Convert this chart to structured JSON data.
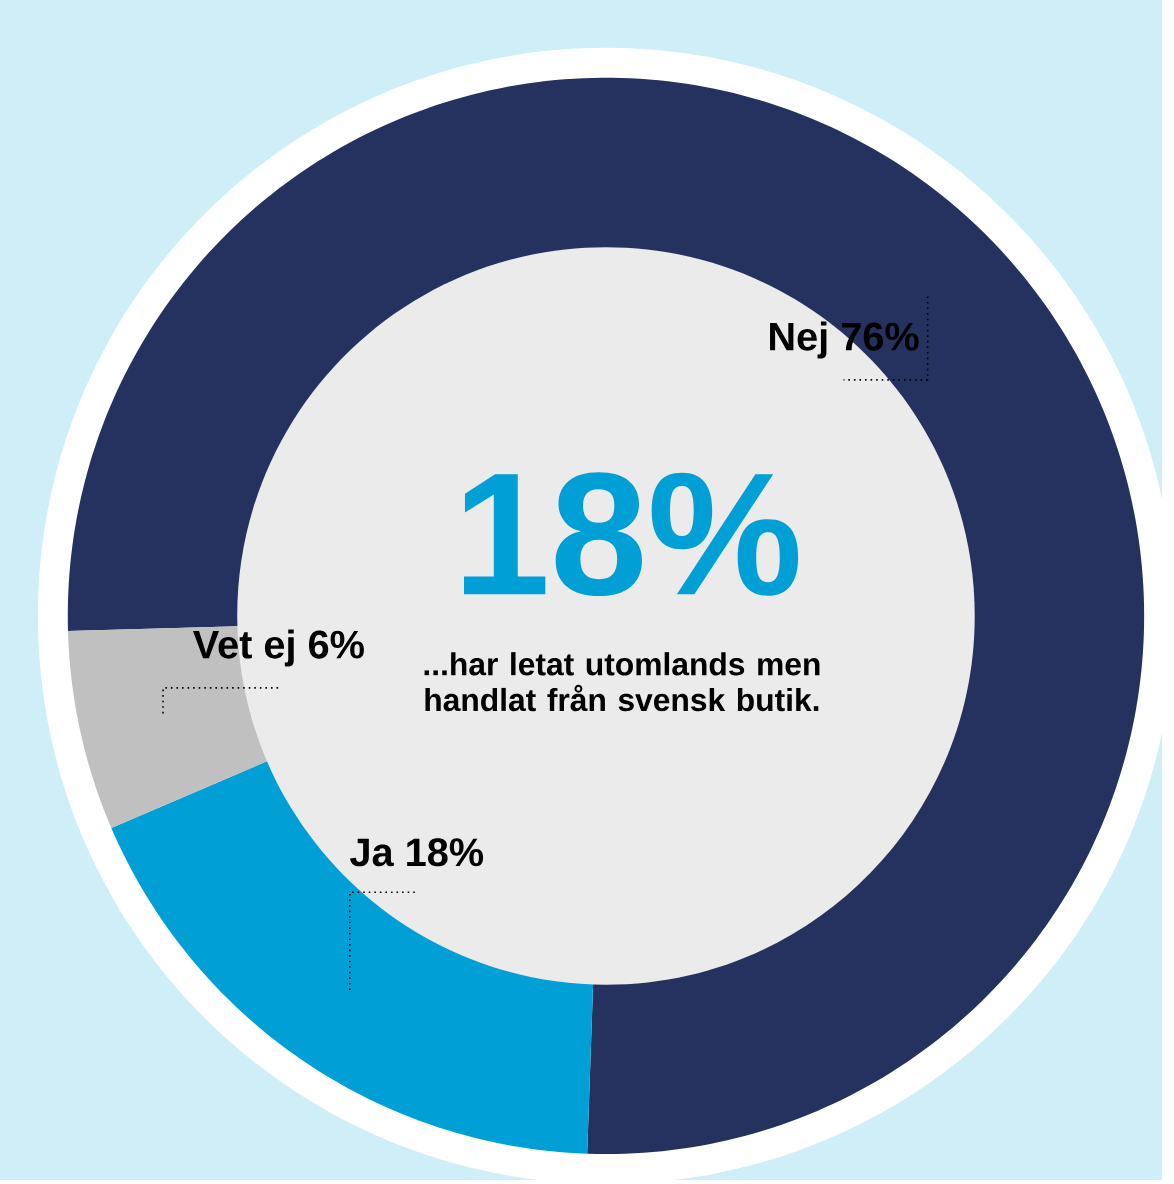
{
  "chart_data": {
    "type": "donut",
    "categories": [
      "Nej",
      "Ja",
      "Vet ej"
    ],
    "values": [
      76,
      18,
      6
    ],
    "colors": [
      "#253260",
      "#009fd6",
      "#c0c0c0"
    ],
    "value_labels": [
      "76%",
      "18%",
      "6%"
    ],
    "annotations": [
      "18%",
      "...har letat utomlands men handlat från svensk butik."
    ]
  }
}
